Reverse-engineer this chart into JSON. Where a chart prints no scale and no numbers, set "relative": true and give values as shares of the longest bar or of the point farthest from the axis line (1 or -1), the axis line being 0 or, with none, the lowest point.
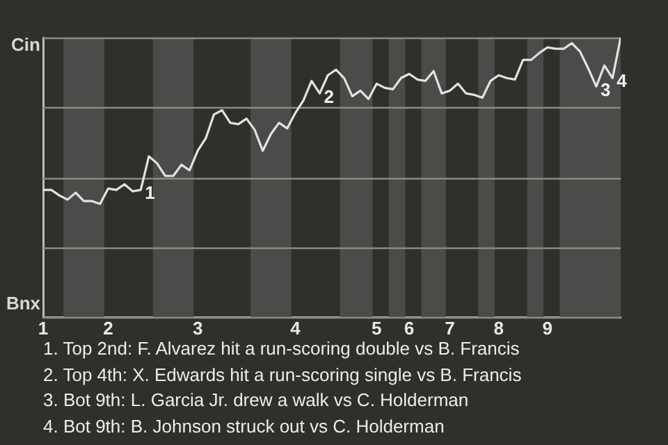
{
  "chart_data": {
    "type": "line",
    "relative": true,
    "categories": [
      "1",
      null,
      null,
      null,
      null,
      null,
      null,
      null,
      "2",
      null,
      null,
      null,
      null,
      null,
      null,
      null,
      null,
      null,
      null,
      "3",
      null,
      null,
      null,
      null,
      null,
      null,
      null,
      null,
      null,
      null,
      null,
      "4",
      null,
      null,
      null,
      null,
      null,
      null,
      null,
      null,
      null,
      "5",
      null,
      null,
      null,
      "6",
      null,
      null,
      null,
      null,
      "7",
      null,
      null,
      null,
      null,
      null,
      "8",
      null,
      null,
      null,
      null,
      null,
      "9",
      null,
      null,
      null,
      null,
      null,
      null,
      null,
      null,
      null
    ],
    "series": [
      {
        "color": "#e2e2e0",
        "values": [
          0.455,
          0.455,
          0.435,
          0.42,
          0.445,
          0.415,
          0.415,
          0.405,
          0.46,
          0.455,
          0.475,
          0.45,
          0.455,
          0.575,
          0.55,
          0.505,
          0.505,
          0.545,
          0.525,
          0.595,
          0.64,
          0.725,
          0.74,
          0.695,
          0.69,
          0.71,
          0.67,
          0.595,
          0.655,
          0.695,
          0.675,
          0.73,
          0.775,
          0.845,
          0.8,
          0.865,
          0.885,
          0.855,
          0.79,
          0.81,
          0.78,
          0.835,
          0.82,
          0.815,
          0.855,
          0.87,
          0.85,
          0.845,
          0.88,
          0.8,
          0.81,
          0.835,
          0.8,
          0.795,
          0.785,
          0.845,
          0.865,
          0.855,
          0.85,
          0.92,
          0.92,
          0.945,
          0.965,
          0.96,
          0.96,
          0.98,
          0.95,
          0.89,
          0.825,
          0.9,
          0.855,
          1
        ]
      }
    ],
    "grid": "y",
    "legend": false,
    "marker": "none",
    "line_style": "solid",
    "annotations": [
      "Cin",
      "Bnx",
      "1. Top 2nd: F. Alvarez hit a run-scoring double vs B. Francis",
      "2. Top 4th: X. Edwards hit a run-scoring single vs B. Francis",
      "3. Bot 9th: L. Garcia Jr. drew a walk vs C. Holderman",
      "4. Bot 9th: B. Johnson struck out vs C. Holderman",
      "1",
      "2",
      "3",
      "4"
    ]
  }
}
